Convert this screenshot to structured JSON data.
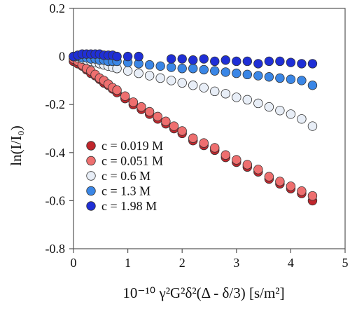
{
  "chart_data": {
    "type": "scatter",
    "xlabel": "10⁻¹⁰ γ²G²δ²(Δ - δ/3) [s/m²]",
    "ylabel": "ln(I/I₀)",
    "xlim": [
      0,
      5
    ],
    "ylim": [
      -0.8,
      0.2
    ],
    "xticks": [
      "0",
      "1",
      "2",
      "3",
      "4",
      "5"
    ],
    "yticks": [
      "0.2",
      "0",
      "-0.2",
      "-0.4",
      "-0.6",
      "-0.8"
    ],
    "grid": false,
    "legend_position": "bottom-left",
    "series": [
      {
        "name": "c = 0.019 M",
        "color": "#c0262c",
        "x": [
          0,
          0.08,
          0.16,
          0.24,
          0.32,
          0.4,
          0.48,
          0.56,
          0.64,
          0.72,
          0.8,
          0.95,
          1.1,
          1.25,
          1.4,
          1.55,
          1.7,
          1.85,
          2.0,
          2.2,
          2.4,
          2.6,
          2.8,
          3.0,
          3.2,
          3.4,
          3.6,
          3.8,
          4.0,
          4.2,
          4.4
        ],
        "y": [
          -0.02,
          -0.03,
          -0.04,
          -0.055,
          -0.07,
          -0.08,
          -0.095,
          -0.11,
          -0.12,
          -0.135,
          -0.15,
          -0.175,
          -0.2,
          -0.22,
          -0.24,
          -0.26,
          -0.28,
          -0.3,
          -0.32,
          -0.35,
          -0.37,
          -0.39,
          -0.42,
          -0.44,
          -0.46,
          -0.48,
          -0.51,
          -0.53,
          -0.55,
          -0.57,
          -0.6
        ]
      },
      {
        "name": "c = 0.051 M",
        "color": "#ee6f6f",
        "x": [
          0,
          0.08,
          0.16,
          0.24,
          0.32,
          0.4,
          0.48,
          0.56,
          0.64,
          0.72,
          0.8,
          0.95,
          1.1,
          1.25,
          1.4,
          1.55,
          1.7,
          1.85,
          2.0,
          2.2,
          2.4,
          2.6,
          2.8,
          3.0,
          3.2,
          3.4,
          3.6,
          3.8,
          4.0,
          4.2,
          4.4
        ],
        "y": [
          -0.01,
          -0.02,
          -0.035,
          -0.05,
          -0.06,
          -0.075,
          -0.09,
          -0.1,
          -0.115,
          -0.13,
          -0.14,
          -0.165,
          -0.19,
          -0.21,
          -0.23,
          -0.25,
          -0.27,
          -0.29,
          -0.31,
          -0.34,
          -0.36,
          -0.38,
          -0.41,
          -0.43,
          -0.45,
          -0.47,
          -0.5,
          -0.52,
          -0.54,
          -0.56,
          -0.58
        ]
      },
      {
        "name": "c = 0.6 M",
        "color": "#e8eef7",
        "x": [
          0,
          0.08,
          0.16,
          0.24,
          0.32,
          0.4,
          0.48,
          0.56,
          0.64,
          0.72,
          0.8,
          1.0,
          1.2,
          1.4,
          1.6,
          1.8,
          2.0,
          2.2,
          2.4,
          2.6,
          2.8,
          3.0,
          3.2,
          3.4,
          3.6,
          3.8,
          4.0,
          4.2,
          4.4
        ],
        "y": [
          0,
          -0.005,
          -0.01,
          -0.015,
          -0.02,
          -0.025,
          -0.03,
          -0.035,
          -0.04,
          -0.045,
          -0.05,
          -0.06,
          -0.07,
          -0.08,
          -0.09,
          -0.1,
          -0.11,
          -0.12,
          -0.13,
          -0.145,
          -0.155,
          -0.17,
          -0.18,
          -0.195,
          -0.21,
          -0.225,
          -0.24,
          -0.26,
          -0.29
        ]
      },
      {
        "name": "c = 1.3 M",
        "color": "#3a86e6",
        "x": [
          0,
          0.08,
          0.16,
          0.24,
          0.32,
          0.4,
          0.48,
          0.56,
          0.64,
          0.72,
          0.8,
          1.0,
          1.2,
          1.4,
          1.6,
          1.8,
          2.0,
          2.2,
          2.4,
          2.6,
          2.8,
          3.0,
          3.2,
          3.4,
          3.6,
          3.8,
          4.0,
          4.2,
          4.4
        ],
        "y": [
          0,
          0,
          -0.005,
          -0.005,
          -0.01,
          -0.01,
          -0.015,
          -0.015,
          -0.02,
          -0.02,
          -0.02,
          -0.025,
          -0.03,
          -0.035,
          -0.04,
          -0.045,
          -0.05,
          -0.05,
          -0.055,
          -0.06,
          -0.065,
          -0.07,
          -0.075,
          -0.08,
          -0.085,
          -0.09,
          -0.095,
          -0.1,
          -0.12
        ]
      },
      {
        "name": "c = 1.98 M",
        "color": "#1f2fd6",
        "x": [
          0,
          0.08,
          0.16,
          0.24,
          0.32,
          0.4,
          0.48,
          0.56,
          0.64,
          0.72,
          0.8,
          1.0,
          1.2,
          1.8,
          2.0,
          2.2,
          2.4,
          2.6,
          2.8,
          3.0,
          3.2,
          3.4,
          3.6,
          3.8,
          4.0,
          4.2,
          4.4
        ],
        "y": [
          0,
          0.005,
          0.01,
          0.01,
          0.01,
          0.01,
          0.01,
          0.005,
          0.005,
          0.005,
          0.0,
          0.0,
          0.0,
          -0.01,
          -0.01,
          -0.015,
          -0.01,
          -0.02,
          -0.015,
          -0.02,
          -0.02,
          -0.03,
          -0.02,
          -0.02,
          -0.025,
          -0.03,
          -0.03
        ]
      }
    ]
  }
}
